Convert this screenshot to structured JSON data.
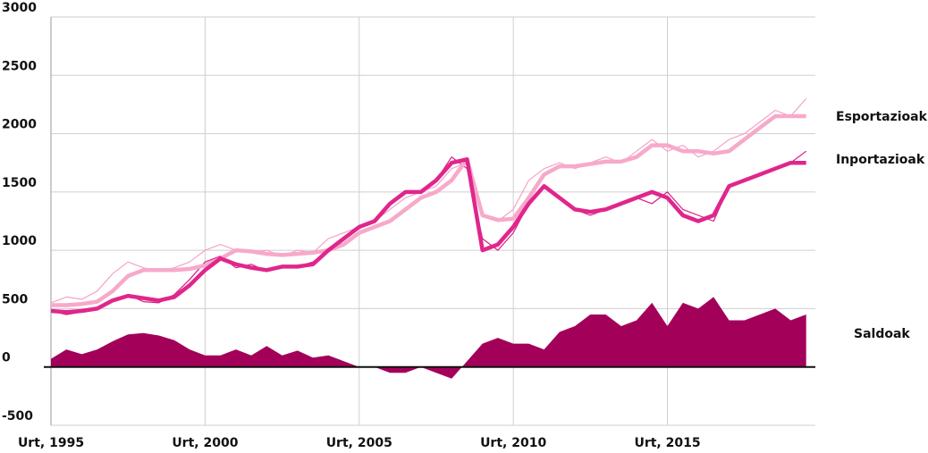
{
  "chart_data": {
    "type": "line",
    "x": [
      1995,
      1995.5,
      1996,
      1996.5,
      1997,
      1997.5,
      1998,
      1998.5,
      1999,
      1999.5,
      2000,
      2000.5,
      2001,
      2001.5,
      2002,
      2002.5,
      2003,
      2003.5,
      2004,
      2004.5,
      2005,
      2005.5,
      2006,
      2006.5,
      2007,
      2007.5,
      2008,
      2008.5,
      2009,
      2009.5,
      2010,
      2010.5,
      2011,
      2011.5,
      2012,
      2012.5,
      2013,
      2013.5,
      2014,
      2014.5,
      2015,
      2015.5,
      2016,
      2016.5,
      2017,
      2017.5,
      2018,
      2018.5,
      2019,
      2019.5
    ],
    "series": [
      {
        "name": "Esportazioak",
        "color": "#f5a3c7",
        "trend_color": "#f7a9ca",
        "values": [
          550,
          600,
          580,
          650,
          800,
          900,
          850,
          820,
          850,
          900,
          1000,
          1050,
          1000,
          980,
          1000,
          950,
          1000,
          980,
          1100,
          1150,
          1200,
          1250,
          1350,
          1450,
          1500,
          1550,
          1700,
          1750,
          1300,
          1250,
          1350,
          1600,
          1700,
          1750,
          1700,
          1750,
          1800,
          1750,
          1850,
          1950,
          1850,
          1900,
          1800,
          1850,
          1950,
          2000,
          2100,
          2200,
          2150,
          2300
        ],
        "trend": [
          530,
          530,
          540,
          560,
          650,
          780,
          830,
          830,
          830,
          840,
          870,
          930,
          1000,
          990,
          970,
          960,
          970,
          980,
          1000,
          1050,
          1150,
          1200,
          1250,
          1350,
          1450,
          1500,
          1600,
          1780,
          1300,
          1260,
          1270,
          1450,
          1650,
          1720,
          1720,
          1740,
          1760,
          1760,
          1800,
          1900,
          1900,
          1850,
          1850,
          1830,
          1850,
          1950,
          2050,
          2150,
          2150,
          2150
        ]
      },
      {
        "name": "Inportazioak",
        "color": "#d81b7e",
        "trend_color": "#e0268c",
        "values": [
          480,
          450,
          470,
          500,
          580,
          620,
          560,
          550,
          620,
          750,
          900,
          950,
          850,
          880,
          820,
          850,
          860,
          900,
          1000,
          1100,
          1200,
          1250,
          1400,
          1500,
          1500,
          1600,
          1800,
          1700,
          1100,
          1000,
          1150,
          1400,
          1550,
          1450,
          1350,
          1300,
          1350,
          1400,
          1450,
          1400,
          1500,
          1350,
          1300,
          1250,
          1550,
          1600,
          1650,
          1700,
          1750,
          1850
        ],
        "trend": [
          480,
          470,
          480,
          500,
          570,
          610,
          590,
          570,
          600,
          700,
          830,
          930,
          880,
          850,
          830,
          860,
          860,
          880,
          1000,
          1100,
          1200,
          1250,
          1400,
          1500,
          1500,
          1600,
          1750,
          1780,
          1000,
          1050,
          1200,
          1400,
          1550,
          1450,
          1350,
          1330,
          1350,
          1400,
          1450,
          1500,
          1450,
          1300,
          1250,
          1300,
          1550,
          1600,
          1650,
          1700,
          1750,
          1750
        ]
      },
      {
        "name": "Saldoak",
        "color": "#a3005a",
        "area": true,
        "values": [
          70,
          150,
          110,
          150,
          220,
          280,
          290,
          270,
          230,
          150,
          100,
          100,
          150,
          100,
          180,
          100,
          140,
          80,
          100,
          50,
          0,
          0,
          -50,
          -50,
          0,
          -50,
          -100,
          50,
          200,
          250,
          200,
          200,
          150,
          300,
          350,
          450,
          450,
          350,
          400,
          550,
          350,
          550,
          500,
          600,
          400,
          400,
          450,
          500,
          400,
          450
        ]
      }
    ],
    "xlim": [
      1995,
      2019.8
    ],
    "xticks": [
      {
        "value": 1995,
        "label": "Urt, 1995"
      },
      {
        "value": 2000,
        "label": "Urt, 2000"
      },
      {
        "value": 2005,
        "label": "Urt, 2005"
      },
      {
        "value": 2010,
        "label": "Urt, 2010"
      },
      {
        "value": 2015,
        "label": "Urt, 2015"
      }
    ],
    "ylim": [
      -500,
      3000
    ],
    "yticks": [
      -500,
      0,
      500,
      1000,
      1500,
      2000,
      2500,
      3000
    ],
    "grid": true
  }
}
